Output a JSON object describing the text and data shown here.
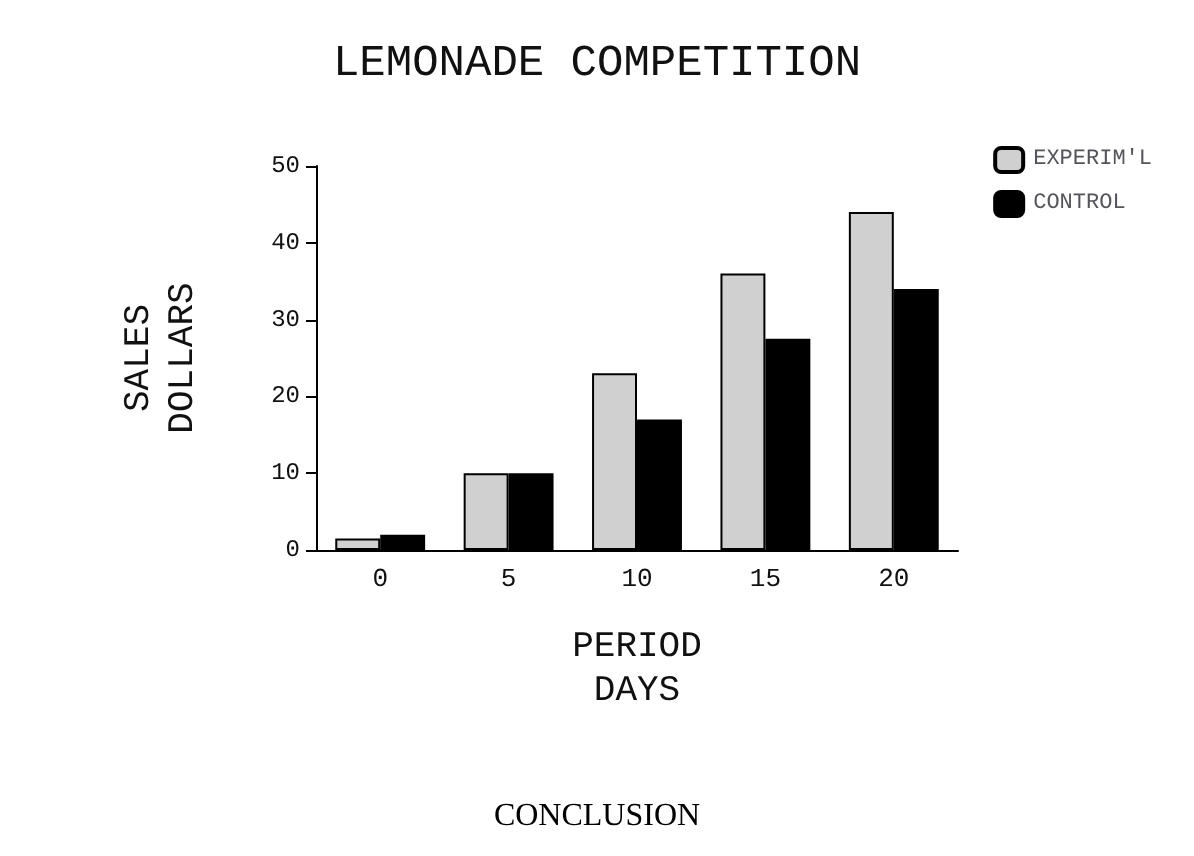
{
  "chart_data": {
    "type": "bar",
    "title": "LEMONADE COMPETITION",
    "xlabel": "PERIOD\nDAYS",
    "ylabel": "SALES\nDOLLARS",
    "categories": [
      "0",
      "5",
      "10",
      "15",
      "20"
    ],
    "series": [
      {
        "name": "EXPERIM'L",
        "color": "#d0d0d0",
        "values": [
          1.5,
          10,
          23,
          36,
          44
        ]
      },
      {
        "name": "CONTROL",
        "color": "#000000",
        "values": [
          2,
          10,
          17,
          27.5,
          34
        ]
      }
    ],
    "ylim": [
      0,
      50
    ],
    "yticks": [
      0,
      10,
      20,
      30,
      40,
      50
    ],
    "grid": false,
    "legend": "top right",
    "annotations": [
      "CONCLUSION"
    ]
  }
}
